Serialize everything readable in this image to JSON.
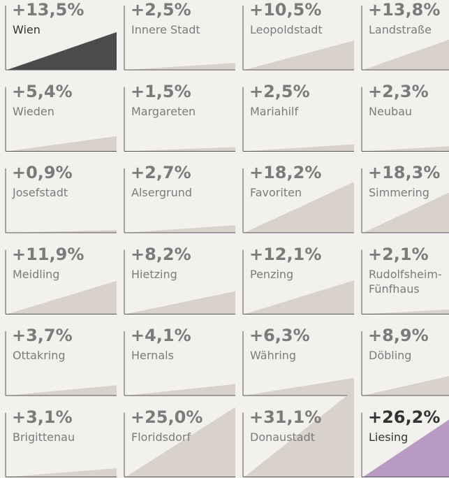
{
  "chart_data": {
    "type": "small-multiples-area",
    "categories": [
      "Wien",
      "Innere Stadt",
      "Leopoldstadt",
      "Landstraße",
      "Wieden",
      "Margareten",
      "Mariahilf",
      "Neubau",
      "Josefstadt",
      "Alsergrund",
      "Favoriten",
      "Simmering",
      "Meidling",
      "Hietzing",
      "Penzing",
      "Rudolfsheim-Fünfhaus",
      "Ottakring",
      "Hernals",
      "Währing",
      "Döbling",
      "Brigittenau",
      "Floridsdorf",
      "Donaustadt",
      "Liesing"
    ],
    "values": [
      13.5,
      2.5,
      10.5,
      13.8,
      5.4,
      1.5,
      2.5,
      2.3,
      0.9,
      2.7,
      18.2,
      18.3,
      11.9,
      8.2,
      12.1,
      2.1,
      3.7,
      4.1,
      6.3,
      8.9,
      3.1,
      25.0,
      31.1,
      26.2
    ],
    "value_labels": [
      "+13,5%",
      "+2,5%",
      "+10,5%",
      "+13,8%",
      "+5,4%",
      "+1,5%",
      "+2,5%",
      "+2,3%",
      "+0,9%",
      "+2,7%",
      "+18,2%",
      "+18,3%",
      "+11,9%",
      "+8,2%",
      "+12,1%",
      "+2,1%",
      "+3,7%",
      "+4,1%",
      "+6,3%",
      "+8,9%",
      "+3,1%",
      "+25,0%",
      "+31,1%",
      "+26,2%"
    ],
    "color": "#d8d2ca",
    "colors": [
      "#4b4b4d",
      "#d8d2ca",
      "#d8d2ca",
      "#d8d2ca",
      "#d8d2ca",
      "#d8d2ca",
      "#d8d2ca",
      "#d8d2ca",
      "#d8d2ca",
      "#d8d2ca",
      "#d8d2ca",
      "#d8d2ca",
      "#d8d2ca",
      "#d8d2ca",
      "#d8d2ca",
      "#d8d2ca",
      "#d8d2ca",
      "#d8d2ca",
      "#d8d2ca",
      "#d8d2ca",
      "#d8d2ca",
      "#d8d2ca",
      "#d8d2ca",
      "#b89bc6"
    ],
    "ylim": [
      0,
      25
    ]
  }
}
